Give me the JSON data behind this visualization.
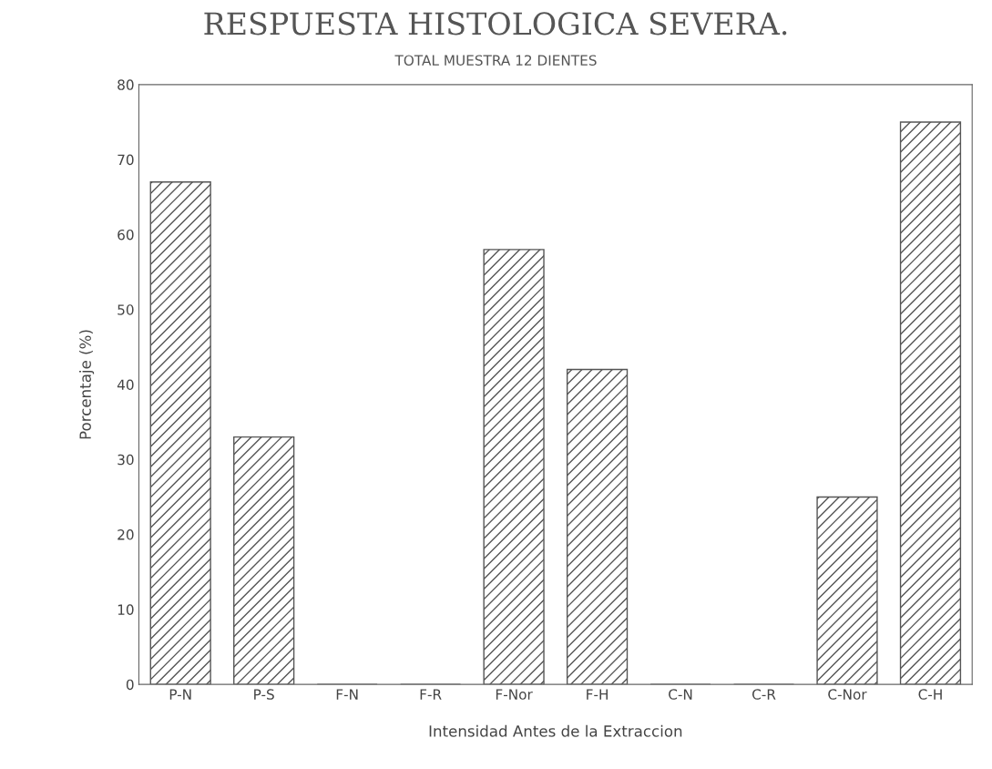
{
  "chart_data": {
    "type": "bar",
    "title": "RESPUESTA HISTOLOGICA SEVERA.",
    "subtitle": "TOTAL MUESTRA 12 DIENTES",
    "xlabel": "Intensidad Antes de la Extraccion",
    "ylabel": "Porcentaje (%)",
    "categories": [
      "P-N",
      "P-S",
      "F-N",
      "F-R",
      "F-Nor",
      "F-H",
      "C-N",
      "C-R",
      "C-Nor",
      "C-H"
    ],
    "values": [
      67,
      33,
      0,
      0,
      58,
      42,
      0,
      0,
      25,
      75
    ],
    "color": "#555555",
    "ylim": [
      0,
      80
    ],
    "yticks": [
      0,
      10,
      20,
      30,
      40,
      50,
      60,
      70,
      80
    ],
    "grid": false,
    "legend": false
  }
}
